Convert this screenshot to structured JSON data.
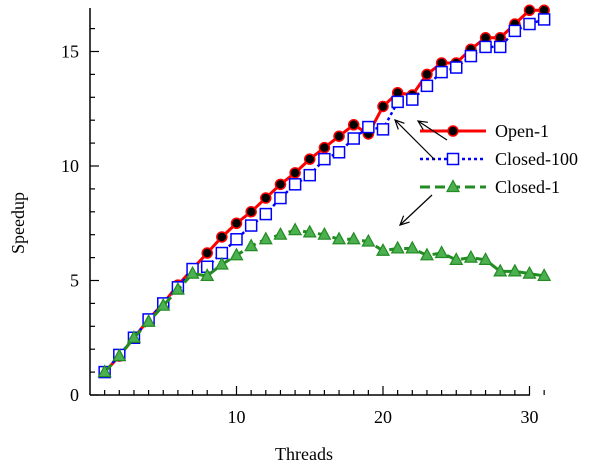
{
  "chart_data": {
    "type": "line",
    "xlabel": "Threads",
    "ylabel": "Speedup",
    "xlim": [
      0,
      32
    ],
    "ylim": [
      0,
      17
    ],
    "xticks": [
      10,
      20,
      30
    ],
    "yticks": [
      0,
      5,
      10,
      15
    ],
    "grid": false,
    "legend_position": "right-center",
    "x": [
      1,
      2,
      3,
      4,
      5,
      6,
      7,
      8,
      9,
      10,
      11,
      12,
      13,
      14,
      15,
      16,
      17,
      18,
      19,
      20,
      21,
      22,
      23,
      24,
      25,
      26,
      27,
      28,
      29,
      30,
      31
    ],
    "series": [
      {
        "name": "Open-1",
        "color": "#ff0000",
        "line_style": "solid",
        "marker": "filled-circle",
        "marker_fill": "#000000",
        "values": [
          1.0,
          1.7,
          2.5,
          3.3,
          4.0,
          4.8,
          5.5,
          6.2,
          6.9,
          7.5,
          8.0,
          8.6,
          9.2,
          9.7,
          10.3,
          10.8,
          11.3,
          11.8,
          11.4,
          12.6,
          13.2,
          13.1,
          14.0,
          14.5,
          14.5,
          15.1,
          15.6,
          15.6,
          16.2,
          16.8,
          16.8
        ]
      },
      {
        "name": "Closed-100",
        "color": "#0000ff",
        "line_style": "dotted",
        "marker": "open-square",
        "marker_fill": "#ffffff",
        "values": [
          1.0,
          1.75,
          2.5,
          3.3,
          4.0,
          4.7,
          5.5,
          5.6,
          6.2,
          6.8,
          7.4,
          7.9,
          8.6,
          9.2,
          9.6,
          10.3,
          10.6,
          11.2,
          11.7,
          11.6,
          12.8,
          12.9,
          13.5,
          14.1,
          14.3,
          14.8,
          15.2,
          15.2,
          15.9,
          16.2,
          16.4
        ]
      },
      {
        "name": "Closed-1",
        "color": "#228b22",
        "line_style": "dashed",
        "marker": "filled-triangle",
        "marker_fill": "#4caf50",
        "values": [
          1.0,
          1.7,
          2.5,
          3.2,
          3.9,
          4.6,
          5.3,
          5.2,
          5.7,
          6.1,
          6.5,
          6.8,
          7.0,
          7.2,
          7.1,
          7.0,
          6.8,
          6.8,
          6.7,
          6.3,
          6.4,
          6.4,
          6.1,
          6.2,
          5.9,
          6.0,
          5.9,
          5.4,
          5.4,
          5.3,
          5.2
        ]
      }
    ]
  }
}
